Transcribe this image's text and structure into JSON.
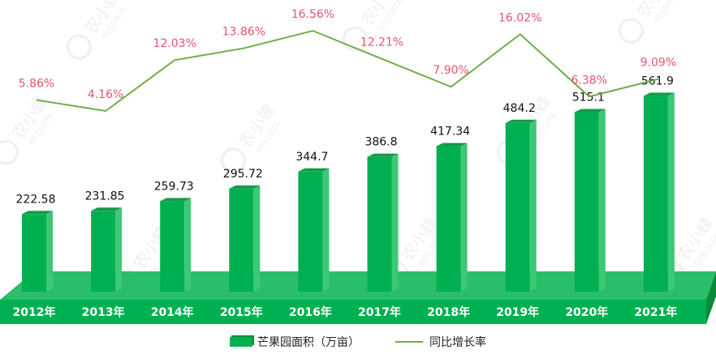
{
  "chart_data": {
    "type": "bar+line",
    "categories": [
      "2012年",
      "2013年",
      "2014年",
      "2015年",
      "2016年",
      "2017年",
      "2018年",
      "2019年",
      "2020年",
      "2021年"
    ],
    "series": [
      {
        "name": "芒果园面积（万亩）",
        "type": "bar",
        "color": "#00B050",
        "values": [
          222.58,
          231.85,
          259.73,
          295.72,
          344.7,
          386.8,
          417.34,
          484.2,
          515.1,
          561.9
        ],
        "labels": [
          "222.58",
          "231.85",
          "259.73",
          "295.72",
          "344.7",
          "386.8",
          "417.34",
          "484.2",
          "515.1",
          "561.9"
        ]
      },
      {
        "name": "同比增长率",
        "type": "line",
        "color": "#70AD47",
        "values": [
          5.86,
          4.16,
          12.03,
          13.86,
          16.56,
          12.21,
          7.9,
          16.02,
          6.38,
          9.09
        ],
        "labels": [
          "5.86%",
          "4.16%",
          "12.03%",
          "13.86%",
          "16.56%",
          "12.21%",
          "7.90%",
          "16.02%",
          "6.38%",
          "9.09%"
        ],
        "label_color": "#E8546E"
      }
    ],
    "legend_position": "bottom",
    "grid": false
  },
  "watermark": {
    "text_cn": "农小蜂",
    "text_en": "BEEDATA"
  }
}
